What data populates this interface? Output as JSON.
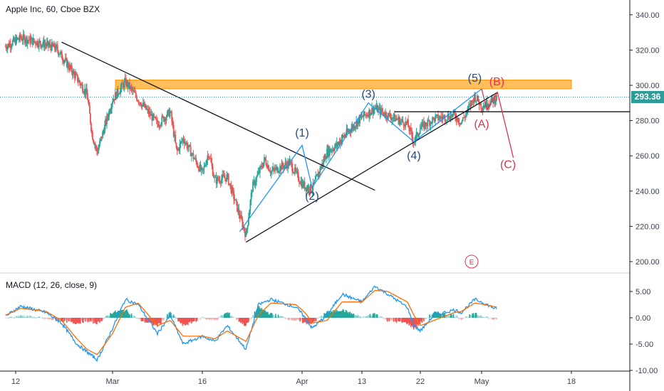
{
  "header": {
    "title": "Apple Inc, 60, Cboe BZX"
  },
  "macd_panel": {
    "title": "MACD (12, 26, close, 9)"
  },
  "last_price_label": "293.36",
  "event_badge": "E",
  "colors": {
    "up": "#26a69a",
    "down": "#ef5350",
    "wave_blue": "#2a4a7a",
    "wave_red": "#e0344c",
    "macd_line": "#2196f3",
    "signal_line": "#ff6d00",
    "resistance_zone": "#ffa726",
    "price_box": "#2e9c99"
  },
  "chart_data": [
    {
      "type": "candlestick",
      "title": "Apple Inc, 60, Cboe BZX",
      "x_tick_labels": [
        "12",
        "Mar",
        "16",
        "Apr",
        "13",
        "22",
        "May",
        "18"
      ],
      "y_tick_labels": [
        "340.00",
        "320.00",
        "300.00",
        "280.00",
        "260.00",
        "240.00",
        "220.00",
        "200.00"
      ],
      "ylim": [
        195,
        345
      ],
      "last_price": 293.36,
      "resistance_zone": [
        298,
        303
      ],
      "horizontal_level": 285,
      "path_keypoints": [
        {
          "x": "Feb 10",
          "y": 322
        },
        {
          "x": "Feb 13",
          "y": 327
        },
        {
          "x": "Feb 18",
          "y": 323
        },
        {
          "x": "Feb 20",
          "y": 321
        },
        {
          "x": "Feb 24",
          "y": 304
        },
        {
          "x": "Feb 26",
          "y": 295
        },
        {
          "x": "Feb 27",
          "y": 272
        },
        {
          "x": "Feb 28",
          "y": 262
        },
        {
          "x": "Mar 2",
          "y": 292
        },
        {
          "x": "Mar 4",
          "y": 302
        },
        {
          "x": "Mar 6",
          "y": 292
        },
        {
          "x": "Mar 9",
          "y": 278
        },
        {
          "x": "Mar 11",
          "y": 285
        },
        {
          "x": "Mar 12",
          "y": 262
        },
        {
          "x": "Mar 13",
          "y": 270
        },
        {
          "x": "Mar 16",
          "y": 250
        },
        {
          "x": "Mar 17",
          "y": 262
        },
        {
          "x": "Mar 18",
          "y": 246
        },
        {
          "x": "Mar 20",
          "y": 248
        },
        {
          "x": "Mar 23",
          "y": 215
        },
        {
          "x": "Mar 24",
          "y": 242
        },
        {
          "x": "Mar 26",
          "y": 258
        },
        {
          "x": "Mar 27",
          "y": 251
        },
        {
          "x": "Mar 30",
          "y": 256
        },
        {
          "x": "Apr 1",
          "y": 244
        },
        {
          "x": "Apr 2",
          "y": 242
        },
        {
          "x": "Apr 3",
          "y": 241
        },
        {
          "x": "Apr 6",
          "y": 262
        },
        {
          "x": "Apr 8",
          "y": 266
        },
        {
          "x": "Apr 9",
          "y": 270
        },
        {
          "x": "Apr 13",
          "y": 282
        },
        {
          "x": "Apr 15",
          "y": 287
        },
        {
          "x": "Apr 17",
          "y": 283
        },
        {
          "x": "Apr 20",
          "y": 278
        },
        {
          "x": "Apr 21",
          "y": 268
        },
        {
          "x": "Apr 22",
          "y": 276
        },
        {
          "x": "Apr 24",
          "y": 281
        },
        {
          "x": "Apr 27",
          "y": 283
        },
        {
          "x": "Apr 28",
          "y": 279
        },
        {
          "x": "Apr 29",
          "y": 286
        },
        {
          "x": "Apr 30",
          "y": 294
        },
        {
          "x": "May 1",
          "y": 288
        },
        {
          "x": "May 4",
          "y": 293
        }
      ],
      "wave_labels_blue": [
        "(1)",
        "(2)",
        "(3)",
        "(4)",
        "(5)"
      ],
      "wave_labels_red": [
        "(A)",
        "(B)",
        "(C)"
      ]
    },
    {
      "type": "macd",
      "title": "MACD (12, 26, close, 9)",
      "y_tick_labels": [
        "5.00",
        "0.00",
        "-5.00",
        "-10.00"
      ],
      "ylim": [
        -10,
        7.5
      ],
      "macd_keypoints": [
        {
          "x": "Feb 10",
          "y": 0.3
        },
        {
          "x": "Feb 13",
          "y": 2.2
        },
        {
          "x": "Feb 18",
          "y": 1.0
        },
        {
          "x": "Feb 21",
          "y": -1.0
        },
        {
          "x": "Feb 24",
          "y": -5.0
        },
        {
          "x": "Feb 26",
          "y": -6.5
        },
        {
          "x": "Feb 28",
          "y": -8.0
        },
        {
          "x": "Mar 2",
          "y": -2.0
        },
        {
          "x": "Mar 4",
          "y": 3.5
        },
        {
          "x": "Mar 6",
          "y": 2.5
        },
        {
          "x": "Mar 9",
          "y": -3.0
        },
        {
          "x": "Mar 11",
          "y": 0.5
        },
        {
          "x": "Mar 13",
          "y": -5.0
        },
        {
          "x": "Mar 16",
          "y": -3.5
        },
        {
          "x": "Mar 18",
          "y": -4.5
        },
        {
          "x": "Mar 20",
          "y": -1.5
        },
        {
          "x": "Mar 23",
          "y": -6.0
        },
        {
          "x": "Mar 25",
          "y": 2.5
        },
        {
          "x": "Mar 27",
          "y": 3.5
        },
        {
          "x": "Mar 31",
          "y": 2.0
        },
        {
          "x": "Apr 2",
          "y": -0.5
        },
        {
          "x": "Apr 3",
          "y": -2.0
        },
        {
          "x": "Apr 6",
          "y": 0.5
        },
        {
          "x": "Apr 9",
          "y": 4.5
        },
        {
          "x": "Apr 13",
          "y": 3.0
        },
        {
          "x": "Apr 15",
          "y": 6.0
        },
        {
          "x": "Apr 17",
          "y": 4.5
        },
        {
          "x": "Apr 20",
          "y": 2.0
        },
        {
          "x": "Apr 21",
          "y": -1.5
        },
        {
          "x": "Apr 22",
          "y": -2.5
        },
        {
          "x": "Apr 24",
          "y": 0.5
        },
        {
          "x": "Apr 27",
          "y": 1.5
        },
        {
          "x": "Apr 28",
          "y": 1.0
        },
        {
          "x": "Apr 30",
          "y": 3.5
        },
        {
          "x": "May 4",
          "y": 1.5
        }
      ],
      "signal_keypoints": [
        {
          "x": "Feb 10",
          "y": 0.5
        },
        {
          "x": "Feb 13",
          "y": 1.8
        },
        {
          "x": "Feb 18",
          "y": 1.2
        },
        {
          "x": "Feb 21",
          "y": -0.5
        },
        {
          "x": "Feb 24",
          "y": -4.0
        },
        {
          "x": "Feb 26",
          "y": -6.0
        },
        {
          "x": "Feb 28",
          "y": -7.0
        },
        {
          "x": "Mar 2",
          "y": -3.0
        },
        {
          "x": "Mar 4",
          "y": 2.0
        },
        {
          "x": "Mar 6",
          "y": 2.8
        },
        {
          "x": "Mar 9",
          "y": -1.5
        },
        {
          "x": "Mar 11",
          "y": -0.5
        },
        {
          "x": "Mar 13",
          "y": -3.5
        },
        {
          "x": "Mar 16",
          "y": -3.5
        },
        {
          "x": "Mar 18",
          "y": -4.0
        },
        {
          "x": "Mar 20",
          "y": -2.5
        },
        {
          "x": "Mar 23",
          "y": -4.5
        },
        {
          "x": "Mar 25",
          "y": 0.5
        },
        {
          "x": "Mar 27",
          "y": 2.8
        },
        {
          "x": "Mar 31",
          "y": 2.5
        },
        {
          "x": "Apr 2",
          "y": 0.5
        },
        {
          "x": "Apr 3",
          "y": -1.0
        },
        {
          "x": "Apr 6",
          "y": -0.5
        },
        {
          "x": "Apr 9",
          "y": 3.0
        },
        {
          "x": "Apr 13",
          "y": 3.0
        },
        {
          "x": "Apr 15",
          "y": 5.2
        },
        {
          "x": "Apr 17",
          "y": 5.0
        },
        {
          "x": "Apr 20",
          "y": 3.0
        },
        {
          "x": "Apr 21",
          "y": 0.5
        },
        {
          "x": "Apr 22",
          "y": -1.5
        },
        {
          "x": "Apr 24",
          "y": -0.5
        },
        {
          "x": "Apr 27",
          "y": 1.0
        },
        {
          "x": "Apr 28",
          "y": 1.2
        },
        {
          "x": "Apr 30",
          "y": 2.8
        },
        {
          "x": "May 4",
          "y": 2.0
        }
      ]
    }
  ]
}
